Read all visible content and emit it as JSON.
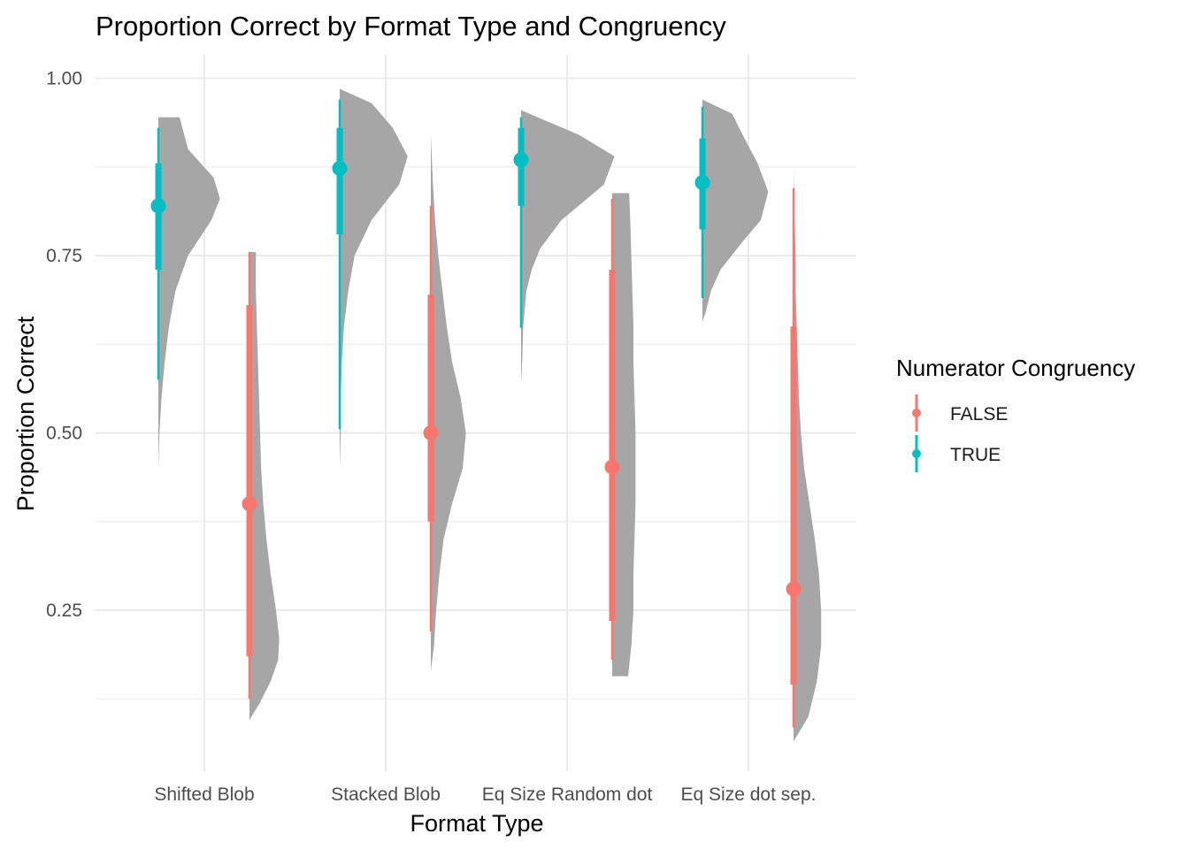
{
  "chart_data": {
    "type": "raincloud",
    "title": "Proportion Correct by Format Type and Congruency",
    "xlabel": "Format Type",
    "ylabel": "Proportion Correct",
    "categories": [
      "Shifted Blob",
      "Stacked Blob",
      "Eq Size Random dot",
      "Eq Size dot sep."
    ],
    "ylim": [
      0.05,
      1.05
    ],
    "yticks": [
      0.25,
      0.5,
      0.75,
      1.0
    ],
    "ytick_labels": [
      "0.25",
      "0.50",
      "0.75",
      "1.00"
    ],
    "grid": true,
    "legend": {
      "title": "Numerator Congruency",
      "position": "right",
      "entries": [
        {
          "label": "FALSE",
          "color": "#F8766D"
        },
        {
          "label": "TRUE",
          "color": "#00BFC4"
        }
      ]
    },
    "density_color": "#A6A6A6",
    "series": [
      {
        "name": "TRUE",
        "color": "#00BFC4",
        "points": [
          {
            "category": "Shifted Blob",
            "median": 0.82,
            "q66": [
              0.73,
              0.88
            ],
            "q95": [
              0.575,
              0.93
            ]
          },
          {
            "category": "Stacked Blob",
            "median": 0.873,
            "q66": [
              0.78,
              0.93
            ],
            "q95": [
              0.505,
              0.97
            ]
          },
          {
            "category": "Eq Size Random dot",
            "median": 0.885,
            "q66": [
              0.82,
              0.93
            ],
            "q95": [
              0.648,
              0.945
            ]
          },
          {
            "category": "Eq Size dot sep.",
            "median": 0.853,
            "q66": [
              0.787,
              0.915
            ],
            "q95": [
              0.69,
              0.96
            ]
          }
        ],
        "densities": [
          {
            "category": "Shifted Blob",
            "y": [
              0.45,
              0.5,
              0.55,
              0.6,
              0.65,
              0.7,
              0.75,
              0.8,
              0.83,
              0.86,
              0.9,
              0.945
            ],
            "width": [
              0.0,
              0.01,
              0.03,
              0.06,
              0.1,
              0.16,
              0.28,
              0.5,
              0.58,
              0.52,
              0.28,
              0.2
            ]
          },
          {
            "category": "Stacked Blob",
            "y": [
              0.45,
              0.5,
              0.55,
              0.6,
              0.65,
              0.7,
              0.75,
              0.8,
              0.85,
              0.89,
              0.93,
              0.965,
              0.985
            ],
            "width": [
              0.0,
              0.01,
              0.01,
              0.02,
              0.04,
              0.08,
              0.14,
              0.3,
              0.56,
              0.64,
              0.5,
              0.3,
              0.0
            ]
          },
          {
            "category": "Eq Size Random dot",
            "y": [
              0.57,
              0.6,
              0.65,
              0.7,
              0.73,
              0.76,
              0.8,
              0.85,
              0.89,
              0.92,
              0.955
            ],
            "width": [
              0.0,
              0.01,
              0.02,
              0.05,
              0.1,
              0.18,
              0.38,
              0.78,
              0.88,
              0.55,
              0.0
            ]
          },
          {
            "category": "Eq Size dot sep.",
            "y": [
              0.657,
              0.67,
              0.7,
              0.73,
              0.77,
              0.8,
              0.84,
              0.88,
              0.92,
              0.95,
              0.97
            ],
            "width": [
              0.0,
              0.03,
              0.08,
              0.17,
              0.38,
              0.55,
              0.62,
              0.52,
              0.38,
              0.28,
              0.0
            ]
          }
        ]
      },
      {
        "name": "FALSE",
        "color": "#F8766D",
        "points": [
          {
            "category": "Shifted Blob",
            "median": 0.4,
            "q66": [
              0.185,
              0.68
            ],
            "q95": [
              0.125,
              0.755
            ]
          },
          {
            "category": "Stacked Blob",
            "median": 0.5,
            "q66": [
              0.375,
              0.695
            ],
            "q95": [
              0.22,
              0.82
            ]
          },
          {
            "category": "Eq Size Random dot",
            "median": 0.452,
            "q66": [
              0.235,
              0.73
            ],
            "q95": [
              0.18,
              0.83
            ]
          },
          {
            "category": "Eq Size dot sep.",
            "median": 0.28,
            "q66": [
              0.145,
              0.65
            ],
            "q95": [
              0.085,
              0.845
            ]
          }
        ],
        "densities": [
          {
            "category": "Shifted Blob",
            "y": [
              0.095,
              0.12,
              0.15,
              0.18,
              0.21,
              0.25,
              0.3,
              0.35,
              0.4,
              0.45,
              0.5,
              0.55,
              0.6,
              0.65,
              0.7,
              0.755
            ],
            "width": [
              0.0,
              0.1,
              0.2,
              0.27,
              0.28,
              0.25,
              0.2,
              0.16,
              0.13,
              0.11,
              0.1,
              0.09,
              0.08,
              0.07,
              0.06,
              0.06
            ]
          },
          {
            "category": "Stacked Blob",
            "y": [
              0.165,
              0.2,
              0.25,
              0.3,
              0.35,
              0.4,
              0.45,
              0.5,
              0.55,
              0.6,
              0.65,
              0.7,
              0.75,
              0.8,
              0.85,
              0.92
            ],
            "width": [
              0.0,
              0.03,
              0.05,
              0.08,
              0.12,
              0.2,
              0.3,
              0.33,
              0.28,
              0.2,
              0.15,
              0.11,
              0.07,
              0.04,
              0.02,
              0.0
            ]
          },
          {
            "category": "Eq Size Random dot",
            "y": [
              0.157,
              0.2,
              0.25,
              0.3,
              0.35,
              0.4,
              0.45,
              0.5,
              0.55,
              0.6,
              0.65,
              0.7,
              0.75,
              0.8,
              0.838
            ],
            "width": [
              0.15,
              0.18,
              0.2,
              0.2,
              0.21,
              0.22,
              0.22,
              0.22,
              0.21,
              0.2,
              0.2,
              0.19,
              0.18,
              0.17,
              0.16
            ]
          },
          {
            "category": "Eq Size dot sep.",
            "y": [
              0.065,
              0.1,
              0.15,
              0.2,
              0.25,
              0.3,
              0.35,
              0.4,
              0.45,
              0.5,
              0.55,
              0.6,
              0.65,
              0.7,
              0.75,
              0.8,
              0.87
            ],
            "width": [
              0.0,
              0.14,
              0.22,
              0.26,
              0.26,
              0.24,
              0.2,
              0.15,
              0.1,
              0.07,
              0.05,
              0.04,
              0.03,
              0.02,
              0.02,
              0.01,
              0.0
            ]
          }
        ]
      }
    ]
  }
}
